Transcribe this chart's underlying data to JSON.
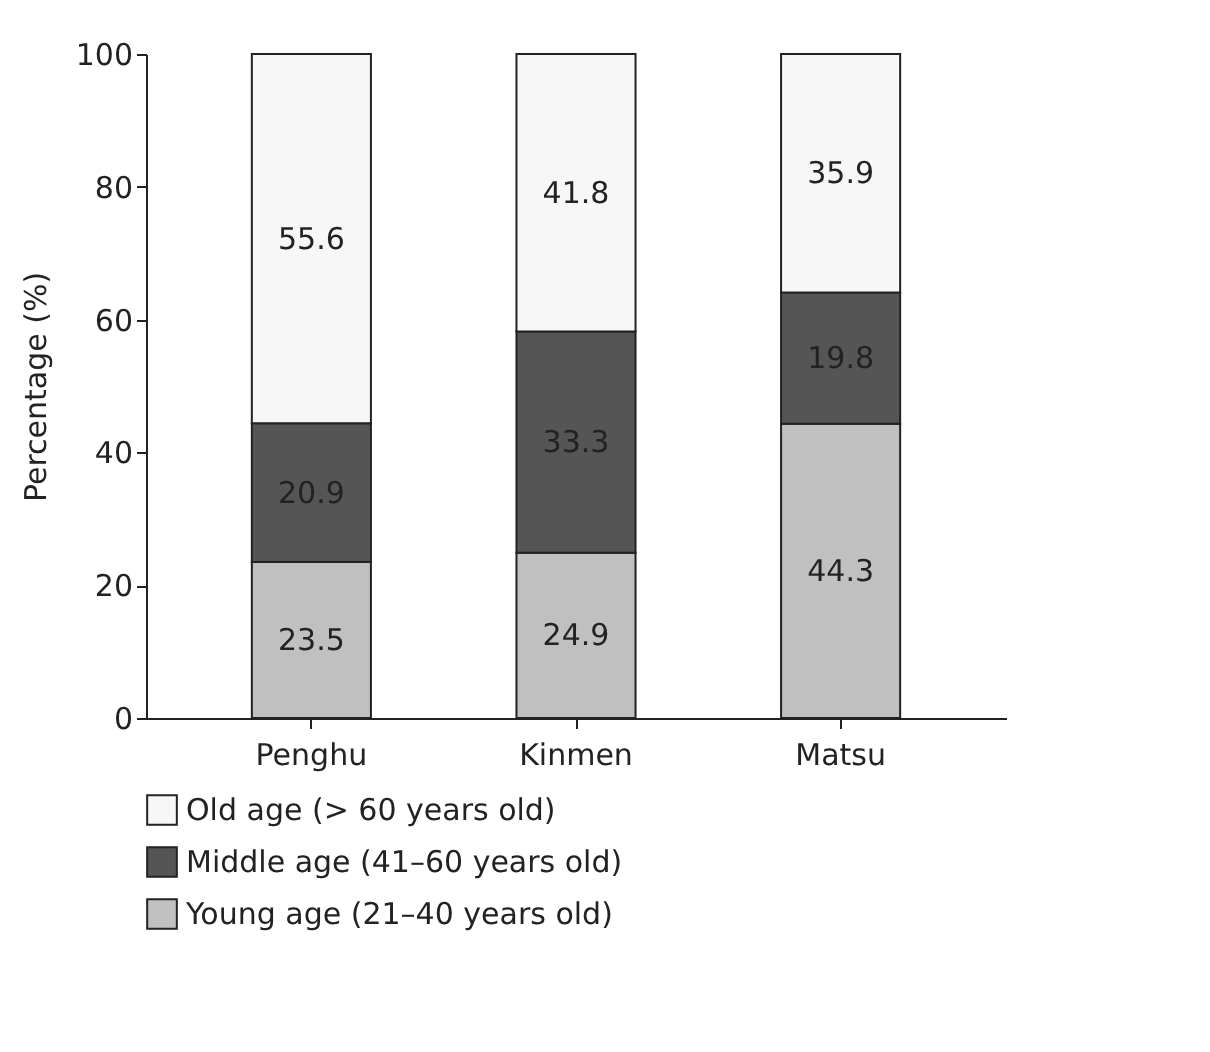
{
  "chart_data": {
    "type": "bar",
    "stacked": true,
    "ylabel": "Percentage (%)",
    "categories": [
      "Penghu",
      "Kinmen",
      "Matsu"
    ],
    "series": [
      {
        "name": "Young age (21–40 years old)",
        "color": "#c0c0c0",
        "values": [
          23.5,
          24.9,
          44.3
        ]
      },
      {
        "name": "Middle age (41–60 years old)",
        "color": "#555555",
        "values": [
          20.9,
          33.3,
          19.8
        ]
      },
      {
        "name": "Old age (> 60 years old)",
        "color": "#f7f7f7",
        "values": [
          55.6,
          41.8,
          35.9
        ]
      }
    ],
    "ylim": [
      0,
      100
    ],
    "yticks": [
      0,
      20,
      40,
      60,
      80,
      100
    ],
    "data_labels": true,
    "legend": "bottom"
  }
}
